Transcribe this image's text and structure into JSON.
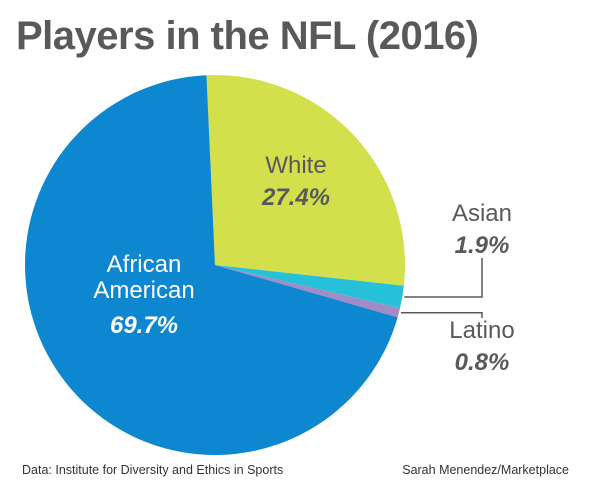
{
  "title": "Players in the NFL (2016)",
  "footer": {
    "source": "Data: Institute for Diversity and Ethics in Sports",
    "credit": "Sarah Menendez/Marketplace"
  },
  "colors": {
    "african_american": "#0d87d0",
    "white": "#d3e04c",
    "asian": "#26c0d8",
    "latino": "#a08cc6",
    "label_dark": "#58595b",
    "leader": "#58595b"
  },
  "chart_data": {
    "type": "pie",
    "title": "Players in the NFL (2016)",
    "unit": "%",
    "slices": [
      {
        "label": "White",
        "value": 27.4,
        "display": "27.4%",
        "color": "#d3e04c"
      },
      {
        "label": "Asian",
        "value": 1.9,
        "display": "1.9%",
        "color": "#26c0d8"
      },
      {
        "label": "Latino",
        "value": 0.8,
        "display": "0.8%",
        "color": "#a08cc6"
      },
      {
        "label": "African American",
        "value": 69.7,
        "display": "69.7%",
        "color": "#0d87d0"
      }
    ]
  }
}
